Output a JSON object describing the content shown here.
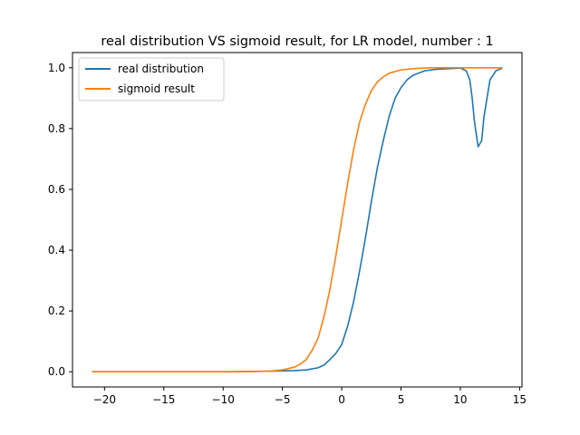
{
  "chart_data": {
    "type": "line",
    "title": "real distribution VS sigmoid result, for LR model, number : 1",
    "xlabel": "",
    "ylabel": "",
    "xlim": [
      -22.7,
      15.2
    ],
    "ylim": [
      -0.05,
      1.05
    ],
    "xticks": [
      -20,
      -15,
      -10,
      -5,
      0,
      5,
      10,
      15
    ],
    "xtick_labels": [
      "−20",
      "−15",
      "−10",
      "−5",
      "0",
      "5",
      "10",
      "15"
    ],
    "yticks": [
      0.0,
      0.2,
      0.4,
      0.6,
      0.8,
      1.0
    ],
    "ytick_labels": [
      "0.0",
      "0.2",
      "0.4",
      "0.6",
      "0.8",
      "1.0"
    ],
    "grid": false,
    "legend_position": "top-left",
    "series": [
      {
        "name": "real distribution",
        "color": "#1f77b4",
        "x": [
          -21,
          -10,
          -6,
          -4,
          -3,
          -2,
          -1.5,
          -1,
          -0.5,
          0,
          0.5,
          1,
          1.5,
          2,
          2.5,
          3,
          3.5,
          4,
          4.5,
          5,
          5.5,
          6,
          7,
          8,
          9,
          10,
          10.5,
          10.8,
          11,
          11.2,
          11.5,
          11.8,
          12,
          12.5,
          13,
          13.5
        ],
        "y": [
          0.0,
          0.0,
          0.002,
          0.004,
          0.006,
          0.013,
          0.022,
          0.04,
          0.06,
          0.09,
          0.15,
          0.23,
          0.33,
          0.44,
          0.56,
          0.67,
          0.76,
          0.84,
          0.9,
          0.935,
          0.96,
          0.975,
          0.99,
          0.995,
          0.997,
          0.999,
          0.99,
          0.96,
          0.9,
          0.82,
          0.74,
          0.76,
          0.84,
          0.96,
          0.99,
          0.998
        ]
      },
      {
        "name": "sigmoid result",
        "color": "#ff7f0e",
        "x": [
          -21,
          -10,
          -8,
          -6,
          -5,
          -4,
          -3.5,
          -3,
          -2.5,
          -2,
          -1.5,
          -1,
          -0.5,
          0,
          0.5,
          1,
          1.5,
          2,
          2.5,
          3,
          3.5,
          4,
          5,
          6,
          7,
          8,
          10,
          13.5
        ],
        "y": [
          0.0,
          0.0,
          0.0003,
          0.002,
          0.006,
          0.015,
          0.025,
          0.04,
          0.07,
          0.11,
          0.18,
          0.27,
          0.38,
          0.5,
          0.62,
          0.73,
          0.82,
          0.88,
          0.925,
          0.953,
          0.97,
          0.982,
          0.993,
          0.997,
          0.999,
          1.0,
          1.0,
          1.0
        ]
      }
    ]
  }
}
